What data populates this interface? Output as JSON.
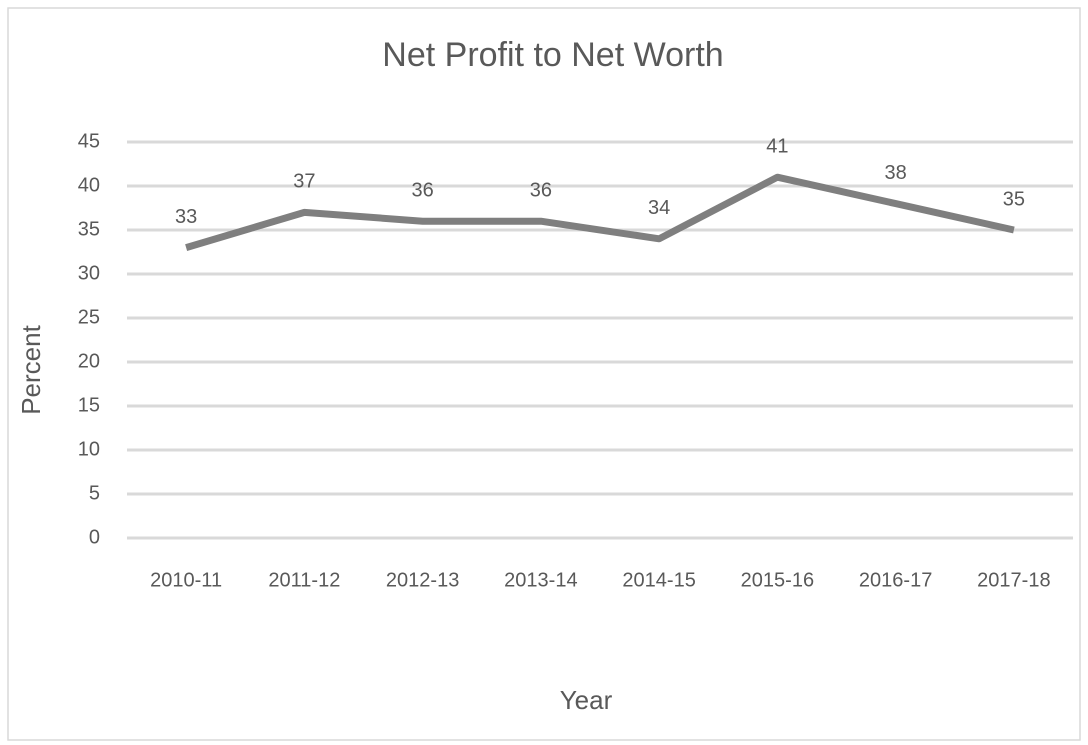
{
  "chart_data": {
    "type": "line",
    "title": "Net Profit to Net Worth",
    "x_label": "Year",
    "y_label": "Percent",
    "categories": [
      "2010-11",
      "2011-12",
      "2012-13",
      "2013-14",
      "2014-15",
      "2015-16",
      "2016-17",
      "2017-18"
    ],
    "values": [
      33,
      37,
      36,
      36,
      34,
      41,
      38,
      35
    ],
    "color": "#7f7f7f",
    "ylim": [
      0,
      45
    ],
    "yticks": [
      0,
      5,
      10,
      15,
      20,
      25,
      30,
      35,
      40,
      45
    ],
    "grid": true
  }
}
